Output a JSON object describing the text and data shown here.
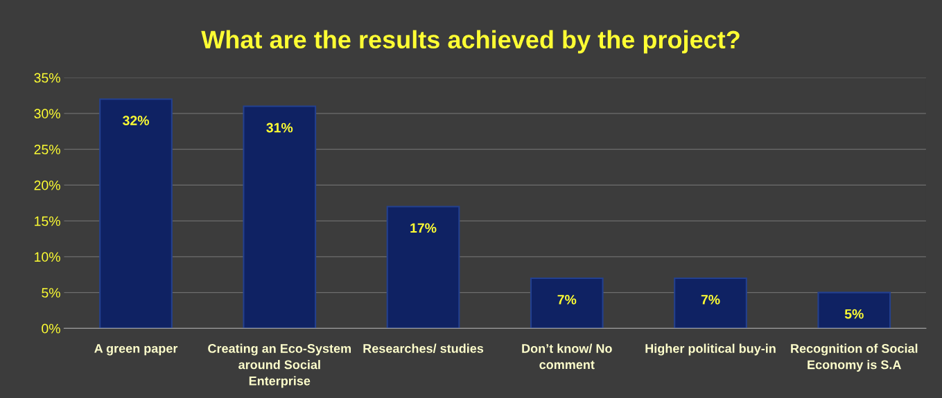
{
  "chart_data": {
    "type": "bar",
    "title": "What are the results achieved by the project?",
    "categories": [
      "A green paper",
      "Creating an Eco-System\naround Social\nEnterprise",
      "Researches/ studies",
      "Don’t know/ No\ncomment",
      "Higher political buy-in",
      "Recognition of Social\nEconomy is S.A"
    ],
    "values": [
      32,
      31,
      17,
      7,
      7,
      5
    ],
    "value_labels": [
      "32%",
      "31%",
      "17%",
      "7%",
      "7%",
      "5%"
    ],
    "color": "#0f2263",
    "ylim": [
      0,
      35
    ],
    "yticks": [
      {
        "value": 0,
        "label": "0%"
      },
      {
        "value": 5,
        "label": "5%"
      },
      {
        "value": 10,
        "label": "10%"
      },
      {
        "value": 15,
        "label": "15%"
      },
      {
        "value": 20,
        "label": "20%"
      },
      {
        "value": 25,
        "label": "25%"
      },
      {
        "value": 30,
        "label": "30%"
      },
      {
        "value": 35,
        "label": "35%"
      }
    ],
    "grid": "y",
    "legend": false
  }
}
